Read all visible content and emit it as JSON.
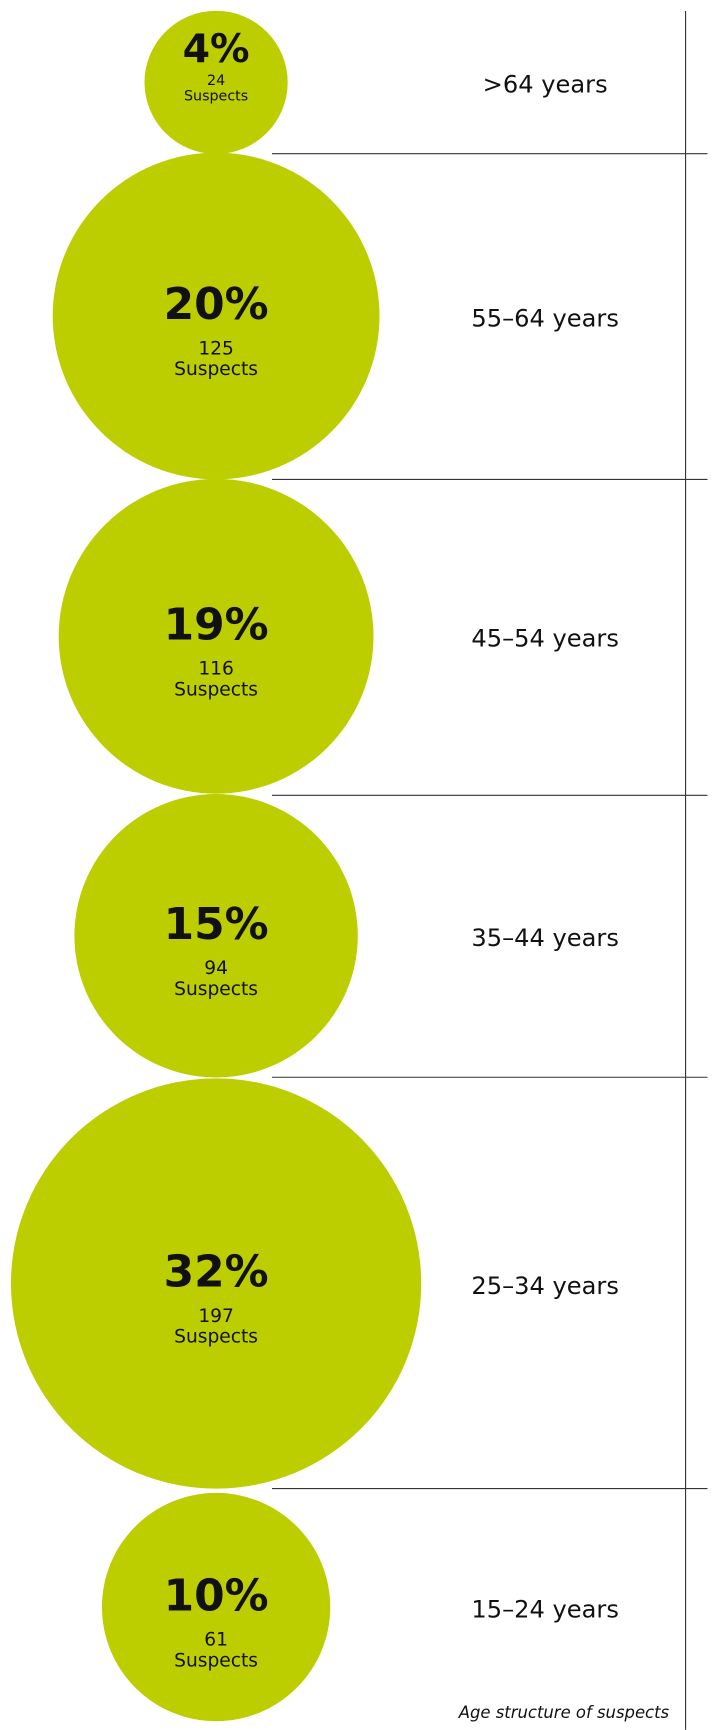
{
  "chart_data": {
    "type": "bubble",
    "caption": "Age structure of suspects",
    "categories": [
      ">64 years",
      "55–64 years",
      "45–54 years",
      "35–44 years",
      "25–34 years",
      "15–24 years"
    ],
    "values": [
      4,
      20,
      19,
      15,
      32,
      10
    ],
    "value_labels": [
      "4%",
      "20%",
      "19%",
      "15%",
      "32%",
      "10%"
    ],
    "counts": [
      24,
      125,
      116,
      94,
      197,
      61
    ],
    "count_unit": "Suspects",
    "color": "#bccd00"
  }
}
